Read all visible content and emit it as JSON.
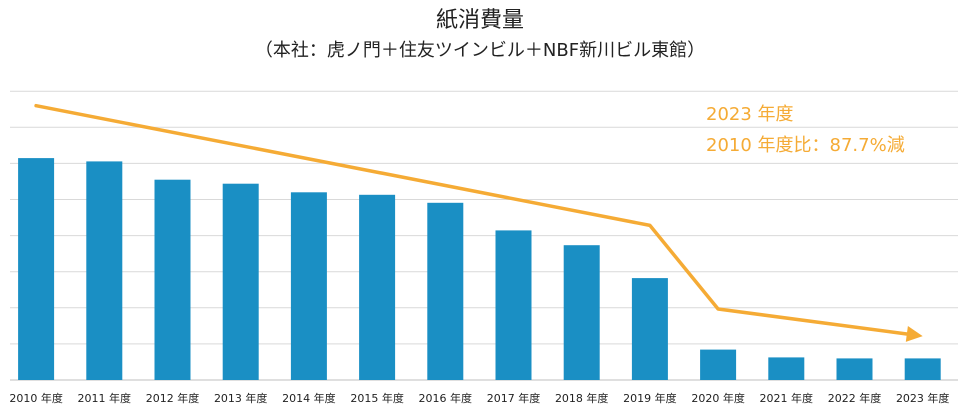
{
  "chart_data": {
    "type": "bar",
    "title": "紙消費量",
    "subtitle": "（本社：虎ノ門＋住友ツインビル＋NBF新川ビル東館）",
    "xlabel": "",
    "ylabel": "",
    "categories": [
      "2010 年度",
      "2011 年度",
      "2012 年度",
      "2013 年度",
      "2014 年度",
      "2015 年度",
      "2016 年度",
      "2017 年度",
      "2018 年度",
      "2019 年度",
      "2020 年度",
      "2021 年度",
      "2022 年度",
      "2023 年度"
    ],
    "values": [
      88.4,
      87.1,
      79.8,
      78.2,
      74.8,
      73.8,
      70.6,
      59.6,
      53.7,
      40.6,
      12.1,
      9.0,
      8.6,
      8.6
    ],
    "ylim": [
      0,
      100
    ],
    "grid": true,
    "bar_color": "#1a8fc4",
    "trend_line": {
      "color": "#f5ab35",
      "points": [
        {
          "category": "2010 年度",
          "value": 109.3
        },
        {
          "category": "2019 年度",
          "value": 61.6
        },
        {
          "category": "2020 年度",
          "value": 28.3
        },
        {
          "category": "2023 年度",
          "value": 17.5
        }
      ]
    },
    "annotation": {
      "lines": [
        "2023 年度",
        "2010 年度比：87.7%減"
      ],
      "color": "#f5ab35"
    }
  }
}
